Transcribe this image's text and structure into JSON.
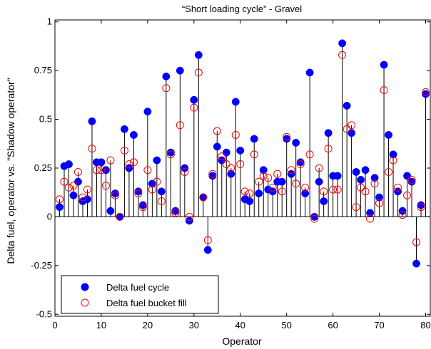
{
  "chart_data": {
    "type": "scatter",
    "title": "“Short loading cycle” - Gravel",
    "xlabel": "Operator",
    "ylabel": "Delta fuel, operator vs. \"Shadow operator\"",
    "xlim": [
      0,
      81
    ],
    "ylim": [
      -0.51,
      1.01
    ],
    "x_ticks": [
      0,
      10,
      20,
      30,
      40,
      50,
      60,
      70,
      80
    ],
    "x_tick_labels": [
      "0",
      "10",
      "20",
      "30",
      "40",
      "50",
      "60",
      "70",
      "80"
    ],
    "y_ticks": [
      -0.5,
      -0.25,
      0,
      0.25,
      0.5,
      0.75,
      1
    ],
    "y_tick_labels": [
      "-0.5",
      "-0.25",
      "0",
      "0.25",
      "0.5",
      "0.75",
      "1"
    ],
    "legend_position": "bottom-left",
    "grid": false,
    "series": [
      {
        "name": "Delta fuel cycle",
        "marker": "filled-circle",
        "color": "#0000ff",
        "x": [
          1,
          2,
          3,
          4,
          5,
          6,
          7,
          8,
          9,
          10,
          11,
          12,
          13,
          14,
          15,
          16,
          17,
          18,
          19,
          20,
          21,
          22,
          23,
          24,
          25,
          26,
          27,
          28,
          29,
          30,
          31,
          32,
          33,
          34,
          35,
          36,
          37,
          38,
          39,
          40,
          41,
          42,
          43,
          44,
          45,
          46,
          47,
          48,
          49,
          50,
          51,
          52,
          53,
          54,
          55,
          56,
          57,
          58,
          59,
          60,
          61,
          62,
          63,
          64,
          65,
          66,
          67,
          68,
          69,
          70,
          71,
          72,
          73,
          74,
          75,
          76,
          77,
          78,
          79,
          80
        ],
        "values": [
          0.05,
          0.26,
          0.27,
          0.11,
          0.18,
          0.08,
          0.09,
          0.49,
          0.28,
          0.28,
          0.24,
          0.03,
          0.12,
          0.0,
          0.45,
          0.25,
          0.42,
          0.13,
          0.06,
          0.54,
          0.17,
          0.29,
          0.13,
          0.72,
          0.33,
          0.03,
          0.75,
          0.25,
          -0.02,
          0.6,
          0.83,
          0.1,
          -0.17,
          0.21,
          0.36,
          0.29,
          0.33,
          0.22,
          0.59,
          0.34,
          0.09,
          0.08,
          0.4,
          0.12,
          0.24,
          0.14,
          0.13,
          0.18,
          0.18,
          0.4,
          0.22,
          0.38,
          0.28,
          0.12,
          0.74,
          0.0,
          0.18,
          0.08,
          0.43,
          0.21,
          0.21,
          0.89,
          0.57,
          0.43,
          0.23,
          0.19,
          0.24,
          0.02,
          0.2,
          0.1,
          0.78,
          0.42,
          0.32,
          0.13,
          0.03,
          0.21,
          0.18,
          -0.24,
          0.06,
          0.63
        ]
      },
      {
        "name": "Delta fuel bucket fill",
        "marker": "open-circle",
        "color": "#ff0000",
        "x": [
          1,
          2,
          3,
          4,
          5,
          6,
          7,
          8,
          9,
          10,
          11,
          12,
          13,
          14,
          15,
          16,
          17,
          18,
          19,
          20,
          21,
          22,
          23,
          24,
          25,
          26,
          27,
          28,
          29,
          30,
          31,
          32,
          33,
          34,
          35,
          36,
          37,
          38,
          39,
          40,
          41,
          42,
          43,
          44,
          45,
          46,
          47,
          48,
          49,
          50,
          51,
          52,
          53,
          54,
          55,
          56,
          57,
          58,
          59,
          60,
          61,
          62,
          63,
          64,
          65,
          66,
          67,
          68,
          69,
          70,
          71,
          72,
          73,
          74,
          75,
          76,
          77,
          78,
          79,
          80
        ],
        "values": [
          0.09,
          0.18,
          0.15,
          0.16,
          0.23,
          0.1,
          0.14,
          0.35,
          0.24,
          0.24,
          0.16,
          0.29,
          0.11,
          0.0,
          0.34,
          0.27,
          0.28,
          0.12,
          0.05,
          0.24,
          0.14,
          0.18,
          0.08,
          0.66,
          0.32,
          0.02,
          0.47,
          0.23,
          0.0,
          0.56,
          0.74,
          0.1,
          -0.12,
          0.22,
          0.44,
          0.31,
          0.27,
          0.25,
          0.42,
          0.27,
          0.13,
          0.12,
          0.32,
          0.18,
          0.21,
          0.2,
          0.15,
          0.22,
          0.13,
          0.41,
          0.24,
          0.17,
          0.27,
          0.15,
          0.32,
          -0.01,
          0.25,
          0.13,
          0.35,
          0.14,
          0.14,
          0.83,
          0.45,
          0.47,
          0.05,
          0.15,
          0.13,
          -0.01,
          0.17,
          0.07,
          0.65,
          0.23,
          0.29,
          0.15,
          0.01,
          0.11,
          0.19,
          -0.13,
          0.05,
          0.64
        ]
      }
    ]
  }
}
